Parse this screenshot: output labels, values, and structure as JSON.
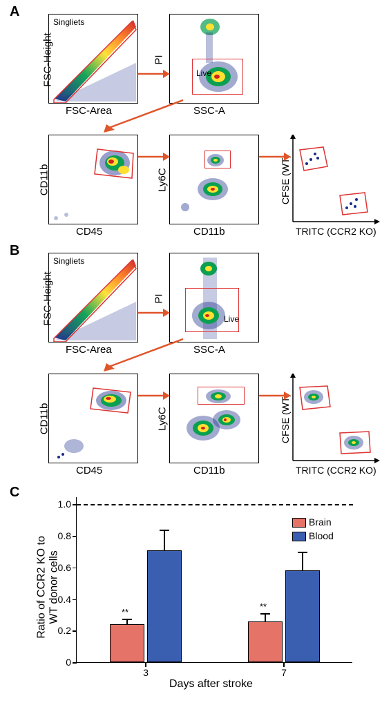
{
  "panelA": {
    "label": "A",
    "label_fontsize": 20,
    "row1": {
      "plot1": {
        "ylabel": "FSC-Height",
        "xlabel": "FSC-Area",
        "inset": "Singliets"
      },
      "plot2": {
        "ylabel": "PI",
        "xlabel": "SSC-A",
        "inset": "Live"
      }
    },
    "row2": {
      "plot1": {
        "ylabel": "CD11b",
        "xlabel": "CD45"
      },
      "plot2": {
        "ylabel": "Ly6C",
        "xlabel": "CD11b"
      },
      "plot3": {
        "ylabel": "CFSE (WT)",
        "xlabel": "TRITC (CCR2 KO)"
      }
    }
  },
  "panelB": {
    "label": "B",
    "label_fontsize": 20,
    "row1": {
      "plot1": {
        "ylabel": "FSC-Height",
        "xlabel": "FSC-Area",
        "inset": "Singliets"
      },
      "plot2": {
        "ylabel": "PI",
        "xlabel": "SSC-A",
        "inset": "Live"
      }
    },
    "row2": {
      "plot1": {
        "ylabel": "CD11b",
        "xlabel": "CD45"
      },
      "plot2": {
        "ylabel": "Ly6C",
        "xlabel": "CD11b"
      },
      "plot3": {
        "ylabel": "CFSE (WT)",
        "xlabel": "TRITC (CCR2 KO)"
      }
    }
  },
  "panelC": {
    "label": "C",
    "label_fontsize": 20,
    "type": "bar",
    "ylabel": "Ratio of CCR2 KO to\nWT donor cells",
    "xlabel": "Days after stroke",
    "ylim": [
      0,
      1.05
    ],
    "yticks": [
      0,
      0.2,
      0.4,
      0.6,
      0.8,
      1.0
    ],
    "ytick_labels": [
      "0",
      "0.2",
      "0.4",
      "0.6",
      "0.8",
      "1.0"
    ],
    "xticks": [
      "3",
      "7"
    ],
    "reference_line": 1.0,
    "groups": [
      {
        "x": 3,
        "bars": [
          {
            "series": "Brain",
            "value": 0.24,
            "err": 0.035,
            "color": "#e57368",
            "stars": "**"
          },
          {
            "series": "Blood",
            "value": 0.71,
            "err": 0.13,
            "color": "#3a5fb0"
          }
        ]
      },
      {
        "x": 7,
        "bars": [
          {
            "series": "Brain",
            "value": 0.26,
            "err": 0.05,
            "color": "#e57368",
            "stars": "**"
          },
          {
            "series": "Blood",
            "value": 0.58,
            "err": 0.12,
            "color": "#3a5fb0"
          }
        ]
      }
    ],
    "legend": [
      {
        "label": "Brain",
        "color": "#e57368"
      },
      {
        "label": "Blood",
        "color": "#3a5fb0"
      }
    ],
    "label_fontsize_axis": 16,
    "tick_fontsize": 14,
    "bar_width_rel": 0.45
  },
  "facs_colors": {
    "low": "#1a2a8a",
    "mid": "#0aa050",
    "high": "#ffe030",
    "peak": "#d02020"
  },
  "gate_color": "#d33",
  "arrow_color": "#e0552a",
  "layout": {
    "plot_size": 120,
    "plot_size_small": 120,
    "axis_label_fontsize": 15,
    "inset_fontsize": 12
  }
}
